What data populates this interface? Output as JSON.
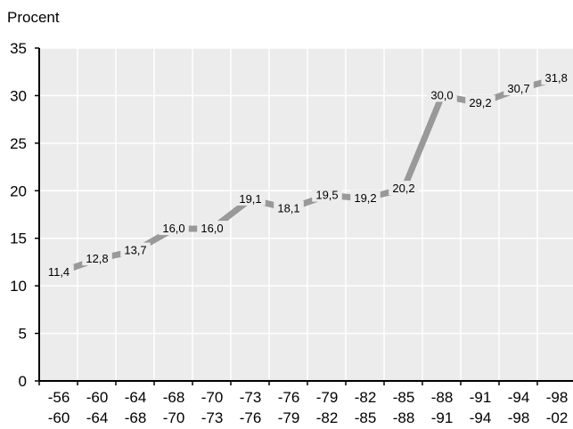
{
  "chart_data": {
    "type": "line",
    "title": "",
    "ylabel": "Procent",
    "xlabel": "",
    "ylim": [
      0,
      35
    ],
    "yticks": [
      "0",
      "5",
      "10",
      "15",
      "20",
      "25",
      "30",
      "35"
    ],
    "grid": true,
    "categories": [
      {
        "top": "-56",
        "bottom": "-60"
      },
      {
        "top": "-60",
        "bottom": "-64"
      },
      {
        "top": "-64",
        "bottom": "-68"
      },
      {
        "top": "-68",
        "bottom": "-70"
      },
      {
        "top": "-70",
        "bottom": "-73"
      },
      {
        "top": "-73",
        "bottom": "-76"
      },
      {
        "top": "-76",
        "bottom": "-79"
      },
      {
        "top": "-79",
        "bottom": "-82"
      },
      {
        "top": "-82",
        "bottom": "-85"
      },
      {
        "top": "-85",
        "bottom": "-88"
      },
      {
        "top": "-88",
        "bottom": "-91"
      },
      {
        "top": "-91",
        "bottom": "-94"
      },
      {
        "top": "-94",
        "bottom": "-98"
      },
      {
        "top": "-98",
        "bottom": "-02"
      }
    ],
    "values": [
      11.4,
      12.8,
      13.7,
      16.0,
      16.0,
      19.1,
      18.1,
      19.5,
      19.2,
      20.2,
      30.0,
      29.2,
      30.7,
      31.8
    ],
    "value_labels": [
      "11,4",
      "12,8",
      "13,7",
      "16,0",
      "16,0",
      "19,1",
      "18,1",
      "19,5",
      "19,2",
      "20,2",
      "30,0",
      "29,2",
      "30,7",
      "31,8"
    ],
    "colors": {
      "line": "#999999",
      "plot_bg": "#ececec",
      "grid": "#ffffff",
      "axis": "#000000"
    }
  }
}
